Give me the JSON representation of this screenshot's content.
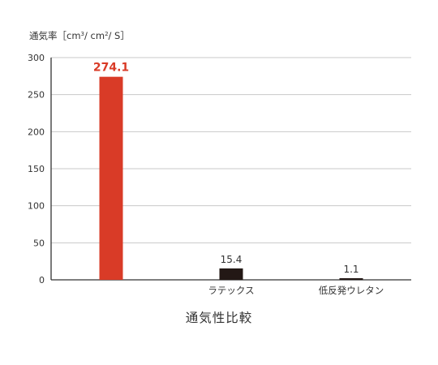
{
  "chart_data": {
    "type": "bar",
    "title": "通気性比較",
    "ylabel": {
      "prefix": "通気率［cm",
      "sup1": "3",
      "middle": "/ cm",
      "sup2": "2",
      "suffix": "/ S］"
    },
    "ylim": [
      0,
      300
    ],
    "yticks": [
      0,
      50,
      100,
      150,
      200,
      250,
      300
    ],
    "grid": true,
    "categories": [
      "",
      "ラテックス",
      "低反発ウレタン"
    ],
    "values": [
      274.1,
      15.4,
      1.1
    ],
    "value_labels": [
      "274.1",
      "15.4",
      "1.1"
    ],
    "colors": [
      "#d93b27",
      "#231815",
      "#231815"
    ],
    "label_colors": [
      "#d93b27",
      "#333333",
      "#333333"
    ]
  }
}
